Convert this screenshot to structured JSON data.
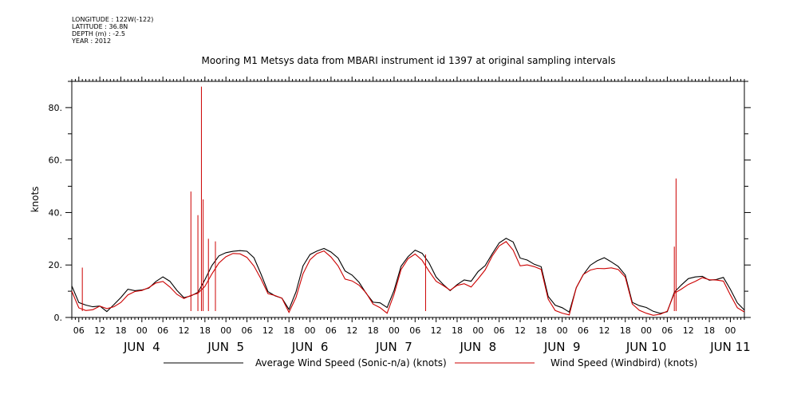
{
  "meta": {
    "longitude": "LONGITUDE : 122W(-122)",
    "latitude": "LATITUDE : 36.8N",
    "depth": "DEPTH (m) : -2.5",
    "year": "YEAR : 2012"
  },
  "chart_data": {
    "type": "line",
    "title": "Mooring M1 Metsys data from MBARI instrument id 1397 at original sampling intervals",
    "xlabel": "",
    "ylabel": "knots",
    "xlim": [
      "JUN 3 04:00",
      "JUN 11 04:00"
    ],
    "ylim": [
      0,
      90
    ],
    "y_tick_labels": [
      "0.",
      "20.",
      "40.",
      "60.",
      "80."
    ],
    "x_hour_tick_labels": [
      "06",
      "12",
      "18",
      "00",
      "06",
      "12",
      "18",
      "00",
      "06",
      "12",
      "18",
      "00",
      "06",
      "12",
      "18",
      "00",
      "06",
      "12",
      "18",
      "00",
      "06",
      "12",
      "18",
      "00",
      "06",
      "12",
      "18",
      "00",
      "06",
      "12",
      "18",
      "00"
    ],
    "x_day_labels": [
      "JUN  4",
      "JUN  5",
      "JUN  6",
      "JUN  7",
      "JUN  8",
      "JUN  9",
      "JUN 10",
      "JUN 11"
    ],
    "grid": false,
    "legend_position": "bottom",
    "series": [
      {
        "name": "Average Wind Speed (Sonic-n/a) (knots)",
        "color": "#000000",
        "x": [
          0,
          2,
          4,
          6,
          8,
          10,
          12,
          14,
          16,
          18,
          20,
          22,
          24,
          26,
          28,
          30,
          32,
          34,
          36,
          38,
          40,
          42,
          44,
          46,
          48,
          50,
          52,
          54,
          56,
          58,
          60,
          62,
          64,
          66,
          68,
          70,
          72,
          74,
          76,
          78,
          80,
          82,
          84,
          86,
          88,
          90,
          92,
          94,
          96,
          98,
          100,
          102,
          104,
          106,
          108,
          110,
          112,
          114,
          116,
          118,
          120,
          122,
          124,
          126,
          128,
          130,
          132,
          134,
          136,
          138,
          140,
          142,
          144,
          146,
          148,
          150,
          152,
          154,
          156,
          158,
          160,
          162,
          164,
          166,
          168,
          170,
          172,
          174,
          176,
          178,
          180,
          182,
          184,
          186,
          188,
          190,
          192
        ],
        "y": [
          12,
          5,
          4,
          4,
          5,
          3,
          5,
          7,
          10,
          10,
          11,
          12,
          14,
          15,
          13,
          10,
          8,
          9,
          10,
          14,
          19,
          23,
          25,
          26,
          26,
          25,
          22,
          16,
          10,
          9,
          8,
          3,
          9,
          19,
          24,
          26,
          27,
          25,
          22,
          17,
          16,
          14,
          10,
          6,
          5,
          3,
          10,
          20,
          24,
          26,
          24,
          20,
          15,
          13,
          11,
          13,
          14,
          13,
          17,
          20,
          25,
          29,
          30,
          28,
          22,
          22,
          21,
          20,
          8,
          4,
          3,
          2,
          12,
          17,
          20,
          21,
          22,
          21,
          20,
          17,
          6,
          4,
          3,
          2,
          2,
          3,
          10,
          12,
          14,
          15,
          16,
          15,
          15,
          15,
          10,
          5,
          3
        ]
      },
      {
        "name": "Wind Speed (Windbird) (knots)",
        "color": "#cc0000",
        "x": [
          0,
          2,
          4,
          6,
          8,
          10,
          12,
          14,
          16,
          18,
          20,
          22,
          24,
          26,
          28,
          30,
          32,
          34,
          36,
          38,
          40,
          42,
          44,
          46,
          48,
          50,
          52,
          54,
          56,
          58,
          60,
          62,
          64,
          66,
          68,
          70,
          72,
          74,
          76,
          78,
          80,
          82,
          84,
          86,
          88,
          90,
          92,
          94,
          96,
          98,
          100,
          102,
          104,
          106,
          108,
          110,
          112,
          114,
          116,
          118,
          120,
          122,
          124,
          126,
          128,
          130,
          132,
          134,
          136,
          138,
          140,
          142,
          144,
          146,
          148,
          150,
          152,
          154,
          156,
          158,
          160,
          162,
          164,
          166,
          168,
          170,
          172,
          174,
          176,
          178,
          180,
          182,
          184,
          186,
          188,
          190,
          192
        ],
        "y": [
          10,
          4,
          3,
          3,
          4,
          3,
          4,
          6,
          9,
          10,
          10,
          11,
          13,
          14,
          12,
          9,
          7,
          8,
          9,
          12,
          17,
          21,
          23,
          24,
          24,
          23,
          20,
          15,
          9,
          8,
          7,
          2,
          8,
          17,
          22,
          24,
          25,
          23,
          20,
          15,
          14,
          12,
          9,
          5,
          4,
          2,
          9,
          18,
          22,
          24,
          22,
          18,
          14,
          12,
          10,
          12,
          13,
          12,
          15,
          18,
          23,
          27,
          29,
          26,
          20,
          20,
          19,
          18,
          7,
          3,
          2,
          1,
          11,
          16,
          18,
          19,
          19,
          19,
          18,
          15,
          5,
          3,
          2,
          1,
          1,
          2,
          9,
          11,
          13,
          14,
          15,
          14,
          14,
          14,
          9,
          4,
          2
        ],
        "spikes": [
          {
            "x": 3,
            "y": 19
          },
          {
            "x": 34,
            "y": 48
          },
          {
            "x": 36,
            "y": 39
          },
          {
            "x": 37,
            "y": 88
          },
          {
            "x": 37.5,
            "y": 45
          },
          {
            "x": 39,
            "y": 30
          },
          {
            "x": 41,
            "y": 29
          },
          {
            "x": 101,
            "y": 24
          },
          {
            "x": 172.5,
            "y": 53
          },
          {
            "x": 172,
            "y": 27
          }
        ]
      }
    ]
  }
}
